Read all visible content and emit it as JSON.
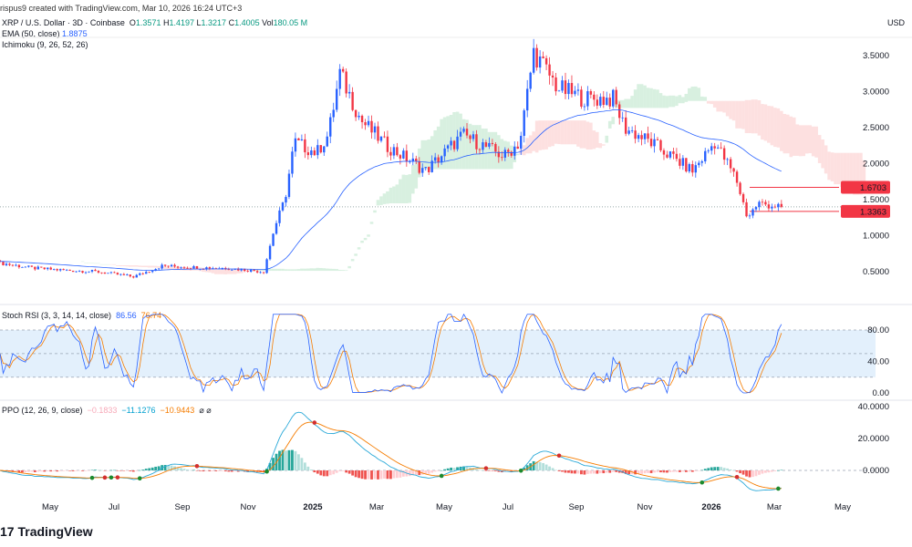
{
  "header": {
    "credit": "rispus9 created with TradingView.com, Mar 10, 2026 16:24 UTC+3",
    "symbol": "XRP / U.S. Dollar · 3D · Coinbase",
    "o_label": "O",
    "open": "1.3571",
    "h_label": "H",
    "high": "1.4197",
    "l_label": "L",
    "low": "1.3217",
    "c_label": "C",
    "close": "1.4005",
    "vol_label": "Vol",
    "volume": "180.05 M",
    "ema_label": "EMA (50, close)",
    "ema_value": "1.8875",
    "ichimoku_label": "Ichimoku (9, 26, 52, 26)",
    "stoch_label": "Stoch RSI (3, 3, 14, 14, close)",
    "stoch_k": "86.56",
    "stoch_d": "76.74",
    "ppo_label": "PPO (12, 26, 9, close)",
    "ppo_hist": "−0.1833",
    "ppo_value": "−11.1276",
    "ppo_signal": "−10.9443",
    "ppo_icons": "⌀ ⌀"
  },
  "currency": "USD",
  "logo": "TradingView",
  "colors": {
    "up": "#089981",
    "down": "#f23645",
    "ema": "#2962ff",
    "k": "#2962ff",
    "d": "#f57c00",
    "cloud_up": "#d8f0e0",
    "cloud_down": "#fde0e0"
  },
  "chart_data": {
    "type": "candlestick",
    "price_axis": {
      "ticks": [
        "3.5000",
        "3.0000",
        "2.5000",
        "2.0000",
        "1.5000",
        "1.0000",
        "0.5000"
      ],
      "ylim": [
        0.2,
        3.9
      ]
    },
    "price_markers": [
      {
        "label": "1.6703"
      },
      {
        "label": "1.3363"
      }
    ],
    "time_axis": [
      "May",
      "Jul",
      "Sep",
      "Nov",
      "2025",
      "Mar",
      "May",
      "Jul",
      "Sep",
      "Nov",
      "2026",
      "Mar",
      "May"
    ],
    "stoch_axis": [
      "80.00",
      "40.00",
      "0.00"
    ],
    "ppo_axis": [
      "40.0000",
      "20.0000",
      "0.0000"
    ],
    "approx_closes": [
      {
        "date": "2024-03-01",
        "close": 0.62
      },
      {
        "date": "2024-04-01",
        "close": 0.55
      },
      {
        "date": "2024-05-01",
        "close": 0.52
      },
      {
        "date": "2024-06-01",
        "close": 0.5
      },
      {
        "date": "2024-07-05",
        "close": 0.43
      },
      {
        "date": "2024-08-01",
        "close": 0.58
      },
      {
        "date": "2024-09-01",
        "close": 0.56
      },
      {
        "date": "2024-10-01",
        "close": 0.55
      },
      {
        "date": "2024-11-05",
        "close": 0.5
      },
      {
        "date": "2024-11-15",
        "close": 1.1
      },
      {
        "date": "2024-11-25",
        "close": 1.5
      },
      {
        "date": "2024-12-04",
        "close": 2.3
      },
      {
        "date": "2024-12-25",
        "close": 2.15
      },
      {
        "date": "2025-01-05",
        "close": 2.4
      },
      {
        "date": "2025-01-16",
        "close": 3.25
      },
      {
        "date": "2025-02-05",
        "close": 2.6
      },
      {
        "date": "2025-03-01",
        "close": 2.25
      },
      {
        "date": "2025-04-07",
        "close": 1.9
      },
      {
        "date": "2025-05-12",
        "close": 2.4
      },
      {
        "date": "2025-06-20",
        "close": 2.1
      },
      {
        "date": "2025-07-05",
        "close": 2.3
      },
      {
        "date": "2025-07-18",
        "close": 3.55
      },
      {
        "date": "2025-08-10",
        "close": 3.05
      },
      {
        "date": "2025-09-05",
        "close": 2.9
      },
      {
        "date": "2025-10-01",
        "close": 2.9
      },
      {
        "date": "2025-10-12",
        "close": 2.5
      },
      {
        "date": "2025-11-05",
        "close": 2.3
      },
      {
        "date": "2025-12-15",
        "close": 1.9
      },
      {
        "date": "2026-01-05",
        "close": 2.3
      },
      {
        "date": "2026-01-25",
        "close": 1.8
      },
      {
        "date": "2026-02-05",
        "close": 1.25
      },
      {
        "date": "2026-02-15",
        "close": 1.45
      },
      {
        "date": "2026-03-10",
        "close": 1.4
      }
    ]
  }
}
